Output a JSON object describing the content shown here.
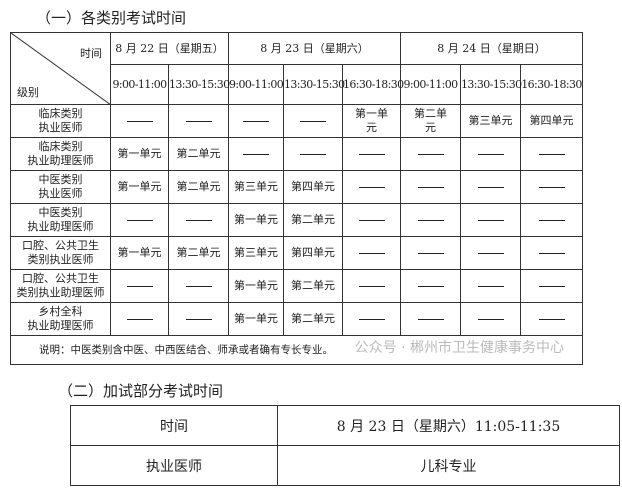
{
  "section1": {
    "title": "（一）各类别考试时间",
    "corner_top": "时间",
    "corner_bottom": "级别",
    "dates": [
      "8 月 22 日（星期五）",
      "8 月 23 日（星期六）",
      "8 月 24 日（星期日）"
    ],
    "times": [
      "9:00-11:00",
      "13:30-15:30",
      "9:00-11:00",
      "13:30-15:30",
      "16:30-18:30",
      "9:00-11:00",
      "13:30-15:30",
      "16:30-18:30"
    ],
    "rows": [
      {
        "category": [
          "临床类别",
          "执业医师"
        ],
        "cells": [
          "—",
          "—",
          "—",
          "—",
          "第一单元",
          "第二单元",
          "第三单元",
          "第四单元"
        ]
      },
      {
        "category": [
          "临床类别",
          "执业助理医师"
        ],
        "cells": [
          "第一单元",
          "第二单元",
          "—",
          "—",
          "—",
          "—",
          "—",
          "—"
        ]
      },
      {
        "category": [
          "中医类别",
          "执业医师"
        ],
        "cells": [
          "第一单元",
          "第二单元",
          "第三单元",
          "第四单元",
          "—",
          "—",
          "—",
          "—"
        ]
      },
      {
        "category": [
          "中医类别",
          "执业助理医师"
        ],
        "cells": [
          "—",
          "—",
          "第一单元",
          "第二单元",
          "—",
          "—",
          "—",
          "—"
        ]
      },
      {
        "category": [
          "口腔、公共卫生",
          "类别执业医师"
        ],
        "cells": [
          "第一单元",
          "第二单元",
          "第三单元",
          "第四单元",
          "—",
          "—",
          "—",
          "—"
        ]
      },
      {
        "category": [
          "口腔、公共卫生",
          "类别执业助理医师"
        ],
        "cells": [
          "—",
          "—",
          "第一单元",
          "第二单元",
          "—",
          "—",
          "—",
          "—"
        ]
      },
      {
        "category": [
          "乡村全科",
          "执业助理医师"
        ],
        "cells": [
          "—",
          "—",
          "第一单元",
          "第二单元",
          "—",
          "—",
          "—",
          "—"
        ]
      }
    ],
    "note": "说明：中医类别含中医、中西医结合、师承或者确有专长专业。",
    "watermark": "公众号 · 郴州市卫生健康事务中心"
  },
  "section2": {
    "title": "（二）加试部分考试时间",
    "rows": [
      [
        "时间",
        "8 月 23 日（星期六）11:05-11:35"
      ],
      [
        "执业医师",
        "儿科专业"
      ]
    ]
  }
}
